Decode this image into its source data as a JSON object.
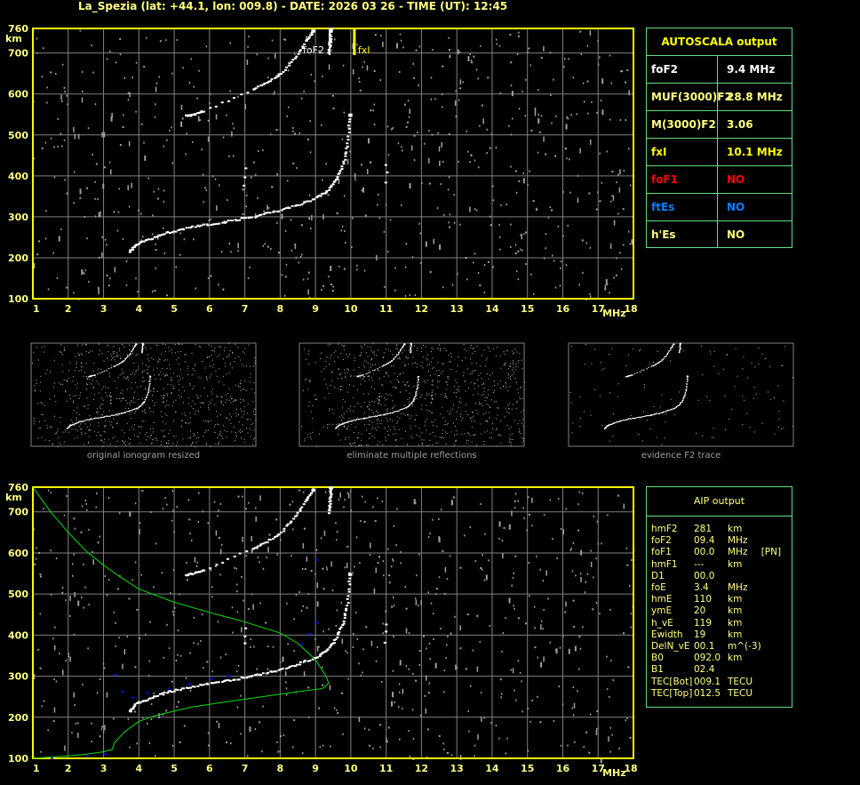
{
  "title": "La_Spezia (lat: +44.1, lon: 009.8) - DATE: 2026 03 26 - TIME (UT): 12:45",
  "colors": {
    "frame": "#ffff00",
    "grid": "#808080",
    "trace": "#ffffff",
    "noise": "#a0a0a0",
    "profile": "#00e000",
    "aip_points": "#0000ff",
    "panel_border": "#60e080"
  },
  "chart_data": [
    {
      "type": "scatter",
      "name_label": "top-ionogram",
      "xlabel": "MHz",
      "ylabel": "km",
      "xlim": [
        1,
        18
      ],
      "ylim": [
        100,
        760
      ],
      "x_ticks": [
        "1",
        "2",
        "3",
        "4",
        "5",
        "6",
        "7",
        "8",
        "9",
        "10",
        "11",
        "12",
        "13",
        "14",
        "15",
        "16",
        "17",
        "18"
      ],
      "y_ticks": [
        "100",
        "200",
        "300",
        "400",
        "500",
        "600",
        "700",
        "760"
      ],
      "grid": true,
      "annotations": [
        {
          "text": "foF2",
          "x": 9.4
        },
        {
          "text": "fxI",
          "x": 10.1
        }
      ],
      "traces": {
        "o_trace": [
          [
            3.7,
            215
          ],
          [
            3.9,
            235
          ],
          [
            4.2,
            245
          ],
          [
            4.6,
            258
          ],
          [
            5,
            268
          ],
          [
            5.5,
            277
          ],
          [
            6,
            284
          ],
          [
            6.5,
            291
          ],
          [
            7,
            299
          ],
          [
            7.5,
            308
          ],
          [
            8,
            318
          ],
          [
            8.5,
            332
          ],
          [
            9,
            348
          ],
          [
            9.3,
            365
          ],
          [
            9.55,
            392
          ],
          [
            9.75,
            430
          ],
          [
            9.88,
            480
          ],
          [
            9.95,
            550
          ]
        ],
        "multi_hop": [
          [
            5.3,
            548
          ],
          [
            5.5,
            552
          ],
          [
            5.8,
            560
          ],
          [
            7.2,
            612
          ],
          [
            7.6,
            630
          ],
          [
            8,
            652
          ],
          [
            8.4,
            690
          ],
          [
            8.7,
            730
          ],
          [
            8.9,
            755
          ]
        ],
        "x_trace": [
          [
            9.35,
            700
          ],
          [
            9.38,
            730
          ],
          [
            9.4,
            760
          ]
        ],
        "spread": [
          [
            6.95,
            380
          ],
          [
            6.96,
            400
          ],
          [
            6.97,
            420
          ],
          [
            10.95,
            385
          ],
          [
            10.97,
            410
          ],
          [
            10.98,
            430
          ]
        ]
      }
    },
    {
      "type": "scatter",
      "name_label": "bottom-ionogram-with-profile",
      "xlabel": "MHz",
      "ylabel": "km",
      "xlim": [
        1,
        18
      ],
      "ylim": [
        100,
        760
      ],
      "grid": true,
      "profile": [
        [
          1,
          760
        ],
        [
          1.5,
          700
        ],
        [
          2,
          650
        ],
        [
          2.5,
          605
        ],
        [
          3,
          570
        ],
        [
          3.5,
          540
        ],
        [
          4,
          512
        ],
        [
          5,
          480
        ],
        [
          6,
          455
        ],
        [
          7,
          432
        ],
        [
          8,
          405
        ],
        [
          8.5,
          380
        ],
        [
          9,
          340
        ],
        [
          9.3,
          300
        ],
        [
          9.37,
          283
        ],
        [
          9.2,
          270
        ],
        [
          8.5,
          262
        ],
        [
          7.5,
          250
        ],
        [
          6.5,
          238
        ],
        [
          5.5,
          225
        ],
        [
          4.5,
          205
        ],
        [
          4,
          190
        ],
        [
          3.6,
          165
        ],
        [
          3.3,
          137
        ],
        [
          3.25,
          122
        ],
        [
          3,
          116
        ],
        [
          2.5,
          110
        ],
        [
          2,
          106
        ],
        [
          1,
          100
        ]
      ],
      "aip_points": [
        [
          3.3,
          305
        ],
        [
          3.5,
          265
        ],
        [
          3.8,
          250
        ],
        [
          4.2,
          262
        ],
        [
          4.8,
          272
        ],
        [
          5.4,
          283
        ],
        [
          6,
          296
        ],
        [
          6.5,
          302
        ],
        [
          8.6,
          380
        ],
        [
          8.8,
          405
        ],
        [
          9,
          432
        ],
        [
          9,
          585
        ],
        [
          1.5,
          103
        ],
        [
          2.5,
          108
        ],
        [
          3,
          112
        ]
      ]
    }
  ],
  "autoscala": {
    "header": "AUTOSCALA output",
    "rows": [
      {
        "label": "foF2",
        "value": "9.4 MHz",
        "color": "#ffffff"
      },
      {
        "label": "MUF(3000)F2",
        "value": "28.8 MHz",
        "color": "#ffff80"
      },
      {
        "label": "M(3000)F2",
        "value": "3.06",
        "color": "#ffff80"
      },
      {
        "label": "fxI",
        "value": "10.1 MHz",
        "color": "#ffff00"
      },
      {
        "label": "foF1",
        "value": "NO",
        "color": "#ff0000"
      },
      {
        "label": "ftEs",
        "value": "NO",
        "color": "#0080ff"
      },
      {
        "label": "h'Es",
        "value": "NO",
        "color": "#ffff80"
      }
    ]
  },
  "aip": {
    "header": "AIP output",
    "rows": [
      {
        "name": "hmF2",
        "value": "281",
        "unit": "km",
        "extra": ""
      },
      {
        "name": "foF2",
        "value": "09.4",
        "unit": "MHz",
        "extra": ""
      },
      {
        "name": "foF1",
        "value": "00.0",
        "unit": "MHz",
        "extra": "[PN]"
      },
      {
        "name": "hmF1",
        "value": "---",
        "unit": "km",
        "extra": ""
      },
      {
        "name": "D1",
        "value": "00.0",
        "unit": "",
        "extra": ""
      },
      {
        "name": "foE",
        "value": "3.4",
        "unit": "MHz",
        "extra": ""
      },
      {
        "name": "hmE",
        "value": "110",
        "unit": "km",
        "extra": ""
      },
      {
        "name": "ymE",
        "value": "20",
        "unit": "km",
        "extra": ""
      },
      {
        "name": "h_vE",
        "value": "119",
        "unit": "km",
        "extra": ""
      },
      {
        "name": "Ewidth",
        "value": "19",
        "unit": "km",
        "extra": ""
      },
      {
        "name": "DelN_vE",
        "value": "00.1",
        "unit": "m^(-3)",
        "extra": ""
      },
      {
        "name": "B0",
        "value": "092.0",
        "unit": "km",
        "extra": ""
      },
      {
        "name": "B1",
        "value": "02.4",
        "unit": "",
        "extra": ""
      },
      {
        "name": "TEC[Bot]",
        "value": "009.1",
        "unit": "TECU",
        "extra": ""
      },
      {
        "name": "TEC[Top]",
        "value": "012.5",
        "unit": "TECU",
        "extra": ""
      }
    ]
  },
  "thumbnails": [
    {
      "caption": "original ionogram resized"
    },
    {
      "caption": "eliminate multiple reflections"
    },
    {
      "caption": "evidence F2 trace"
    }
  ]
}
